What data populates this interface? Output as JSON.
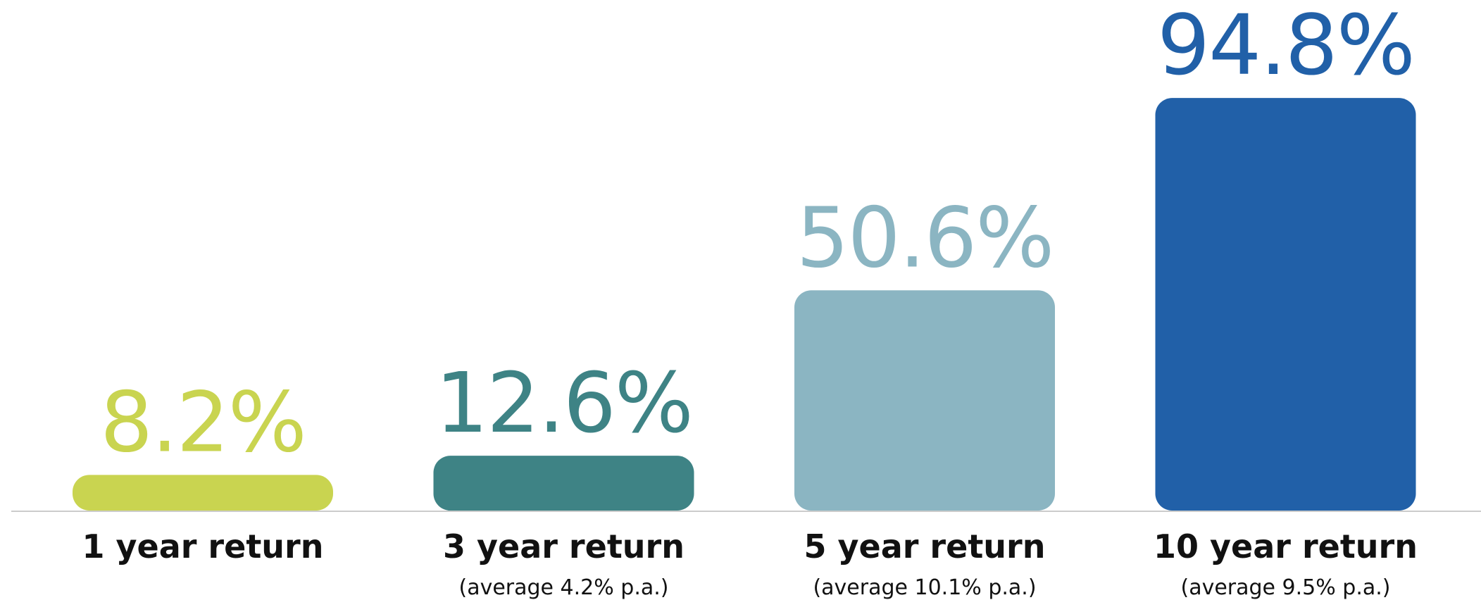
{
  "chart_data": {
    "type": "bar",
    "categories": [
      "1 year return",
      "3 year return",
      "5 year return",
      "10 year return"
    ],
    "subtitles": [
      null,
      "(average 4.2% p.a.)",
      "(average 10.1% p.a.)",
      "(average 9.5% p.a.)"
    ],
    "values": [
      8.2,
      12.6,
      50.6,
      94.8
    ],
    "value_labels": [
      "8.2%",
      "12.6%",
      "50.6%",
      "94.8%"
    ],
    "colors": [
      "#c9d450",
      "#3e8385",
      "#8bb5c2",
      "#2160a8"
    ]
  }
}
